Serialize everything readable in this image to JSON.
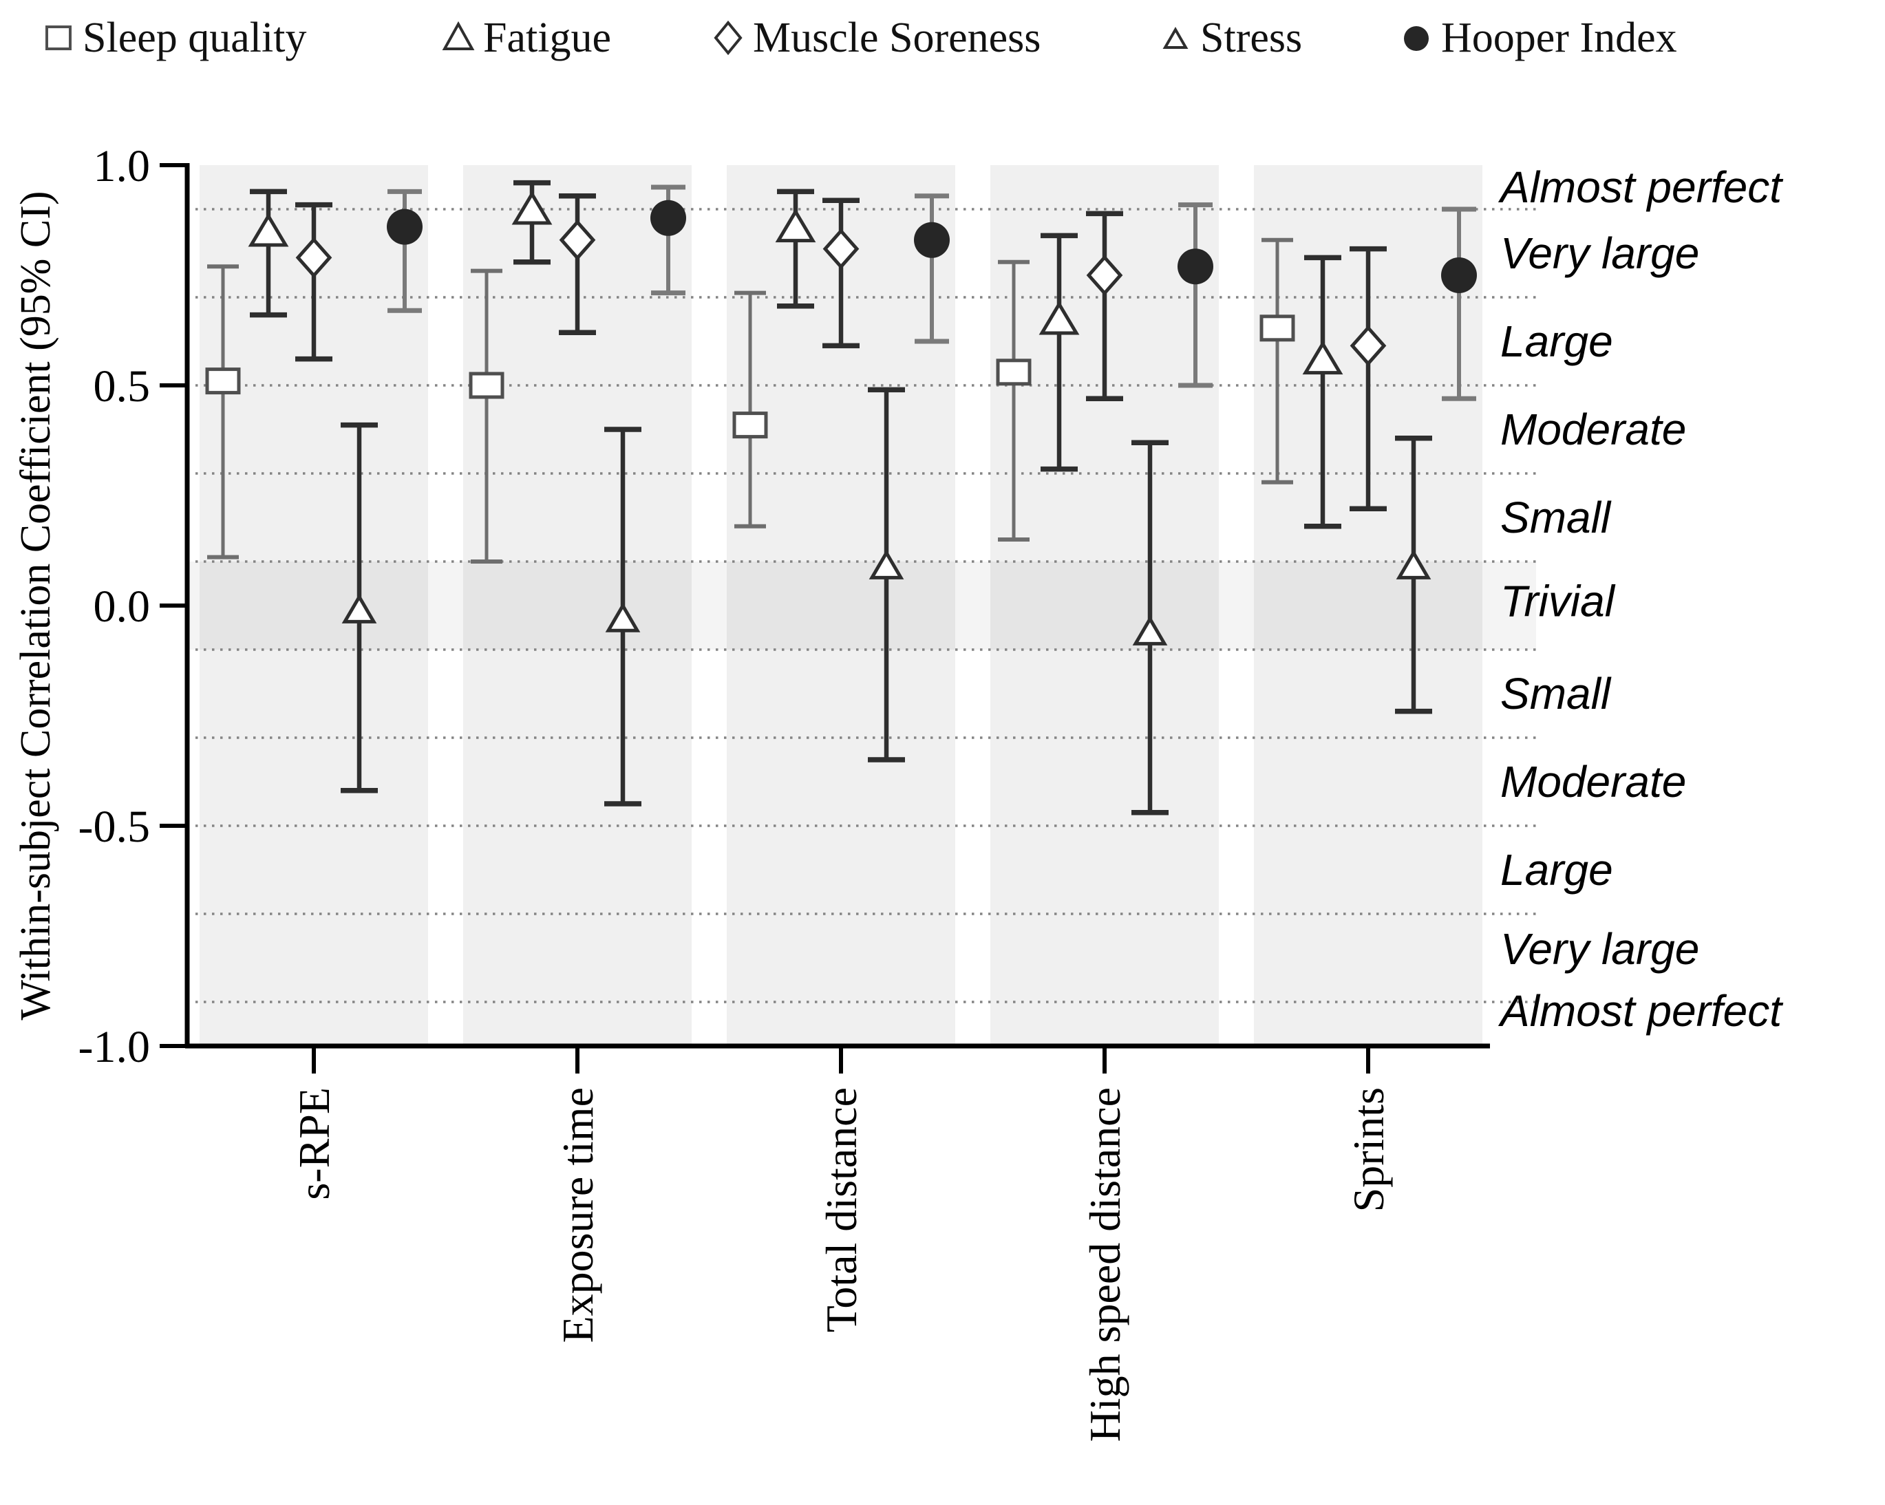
{
  "legend": {
    "items": [
      {
        "label": "Sleep quality",
        "marker": "square"
      },
      {
        "label": "Fatigue",
        "marker": "triangle"
      },
      {
        "label": "Muscle Soreness",
        "marker": "diamond"
      },
      {
        "label": "Stress",
        "marker": "triangle-small"
      },
      {
        "label": "Hooper Index",
        "marker": "circle-filled"
      }
    ]
  },
  "y_axis": {
    "title": "Within-subject Correlation Coefficient (95% CI)",
    "tick_labels": [
      "1.0",
      "0.5",
      "0.0",
      "-0.5",
      "-1.0"
    ],
    "tick_values": [
      1.0,
      0.5,
      0.0,
      -0.5,
      -1.0
    ]
  },
  "magnitude_labels": [
    {
      "label": "Almost perfect",
      "value": 0.95
    },
    {
      "label": "Very large",
      "value": 0.8
    },
    {
      "label": "Large",
      "value": 0.6
    },
    {
      "label": "Moderate",
      "value": 0.4
    },
    {
      "label": "Small",
      "value": 0.2
    },
    {
      "label": "Trivial",
      "value": 0.01
    },
    {
      "label": "Small",
      "value": -0.2
    },
    {
      "label": "Moderate",
      "value": -0.4
    },
    {
      "label": "Large",
      "value": -0.6
    },
    {
      "label": "Very large",
      "value": -0.78
    },
    {
      "label": "Almost perfect",
      "value": -0.92
    }
  ],
  "chart_data": {
    "type": "scatter",
    "subtype": "point-estimates-with-95CI-error-bars",
    "title": "",
    "xlabel": "",
    "ylabel": "Within-subject Correlation Coefficient (95% CI)",
    "ylim": [
      -1.0,
      1.0
    ],
    "grid": "dotted horizontal lines at ±0.1, ±0.3, ±0.5, ±0.7, ±0.9",
    "legend_position": "top",
    "categories": [
      "s-RPE",
      "Exposure time",
      "Total distance",
      "High speed distance",
      "Sprints"
    ],
    "gridline_values": [
      0.9,
      0.7,
      0.5,
      0.3,
      0.1,
      -0.1,
      -0.3,
      -0.5,
      -0.7,
      -0.9
    ],
    "trivial_band": [
      -0.1,
      0.1
    ],
    "series": [
      {
        "name": "Sleep quality",
        "marker": "square",
        "values": [
          0.51,
          0.5,
          0.41,
          0.53,
          0.63
        ],
        "ci_low": [
          0.11,
          0.1,
          0.18,
          0.15,
          0.28
        ],
        "ci_high": [
          0.77,
          0.76,
          0.71,
          0.78,
          0.83
        ]
      },
      {
        "name": "Fatigue",
        "marker": "triangle",
        "values": [
          0.85,
          0.9,
          0.86,
          0.65,
          0.56
        ],
        "ci_low": [
          0.66,
          0.78,
          0.68,
          0.31,
          0.18
        ],
        "ci_high": [
          0.94,
          0.96,
          0.94,
          0.84,
          0.79
        ]
      },
      {
        "name": "Muscle Soreness",
        "marker": "diamond",
        "values": [
          0.79,
          0.83,
          0.81,
          0.75,
          0.59
        ],
        "ci_low": [
          0.56,
          0.62,
          0.59,
          0.47,
          0.22
        ],
        "ci_high": [
          0.91,
          0.93,
          0.92,
          0.89,
          0.81
        ]
      },
      {
        "name": "Stress",
        "marker": "triangle-small",
        "values": [
          -0.01,
          -0.03,
          0.09,
          -0.06,
          0.09
        ],
        "ci_low": [
          -0.42,
          -0.45,
          -0.35,
          -0.47,
          -0.24
        ],
        "ci_high": [
          0.41,
          0.4,
          0.49,
          0.37,
          0.38
        ]
      },
      {
        "name": "Hooper Index",
        "marker": "circle-filled",
        "values": [
          0.86,
          0.88,
          0.83,
          0.77,
          0.75
        ],
        "ci_low": [
          0.67,
          0.71,
          0.6,
          0.5,
          0.47
        ],
        "ci_high": [
          0.94,
          0.95,
          0.93,
          0.91,
          0.9
        ]
      }
    ]
  },
  "colors": {
    "band_fill": "#f0f0f0",
    "trivial_overlay": "rgba(0,0,0,0.045)",
    "gridline": "#848484",
    "axis": "#000000",
    "dark_series": "#2e2e2e",
    "gray_series": "#6e6e6e",
    "hooper_bar": "#7a7a7a",
    "hooper_fill": "#262626",
    "square_stroke": "#4f4f4f",
    "marker_fill": "#ffffff"
  }
}
